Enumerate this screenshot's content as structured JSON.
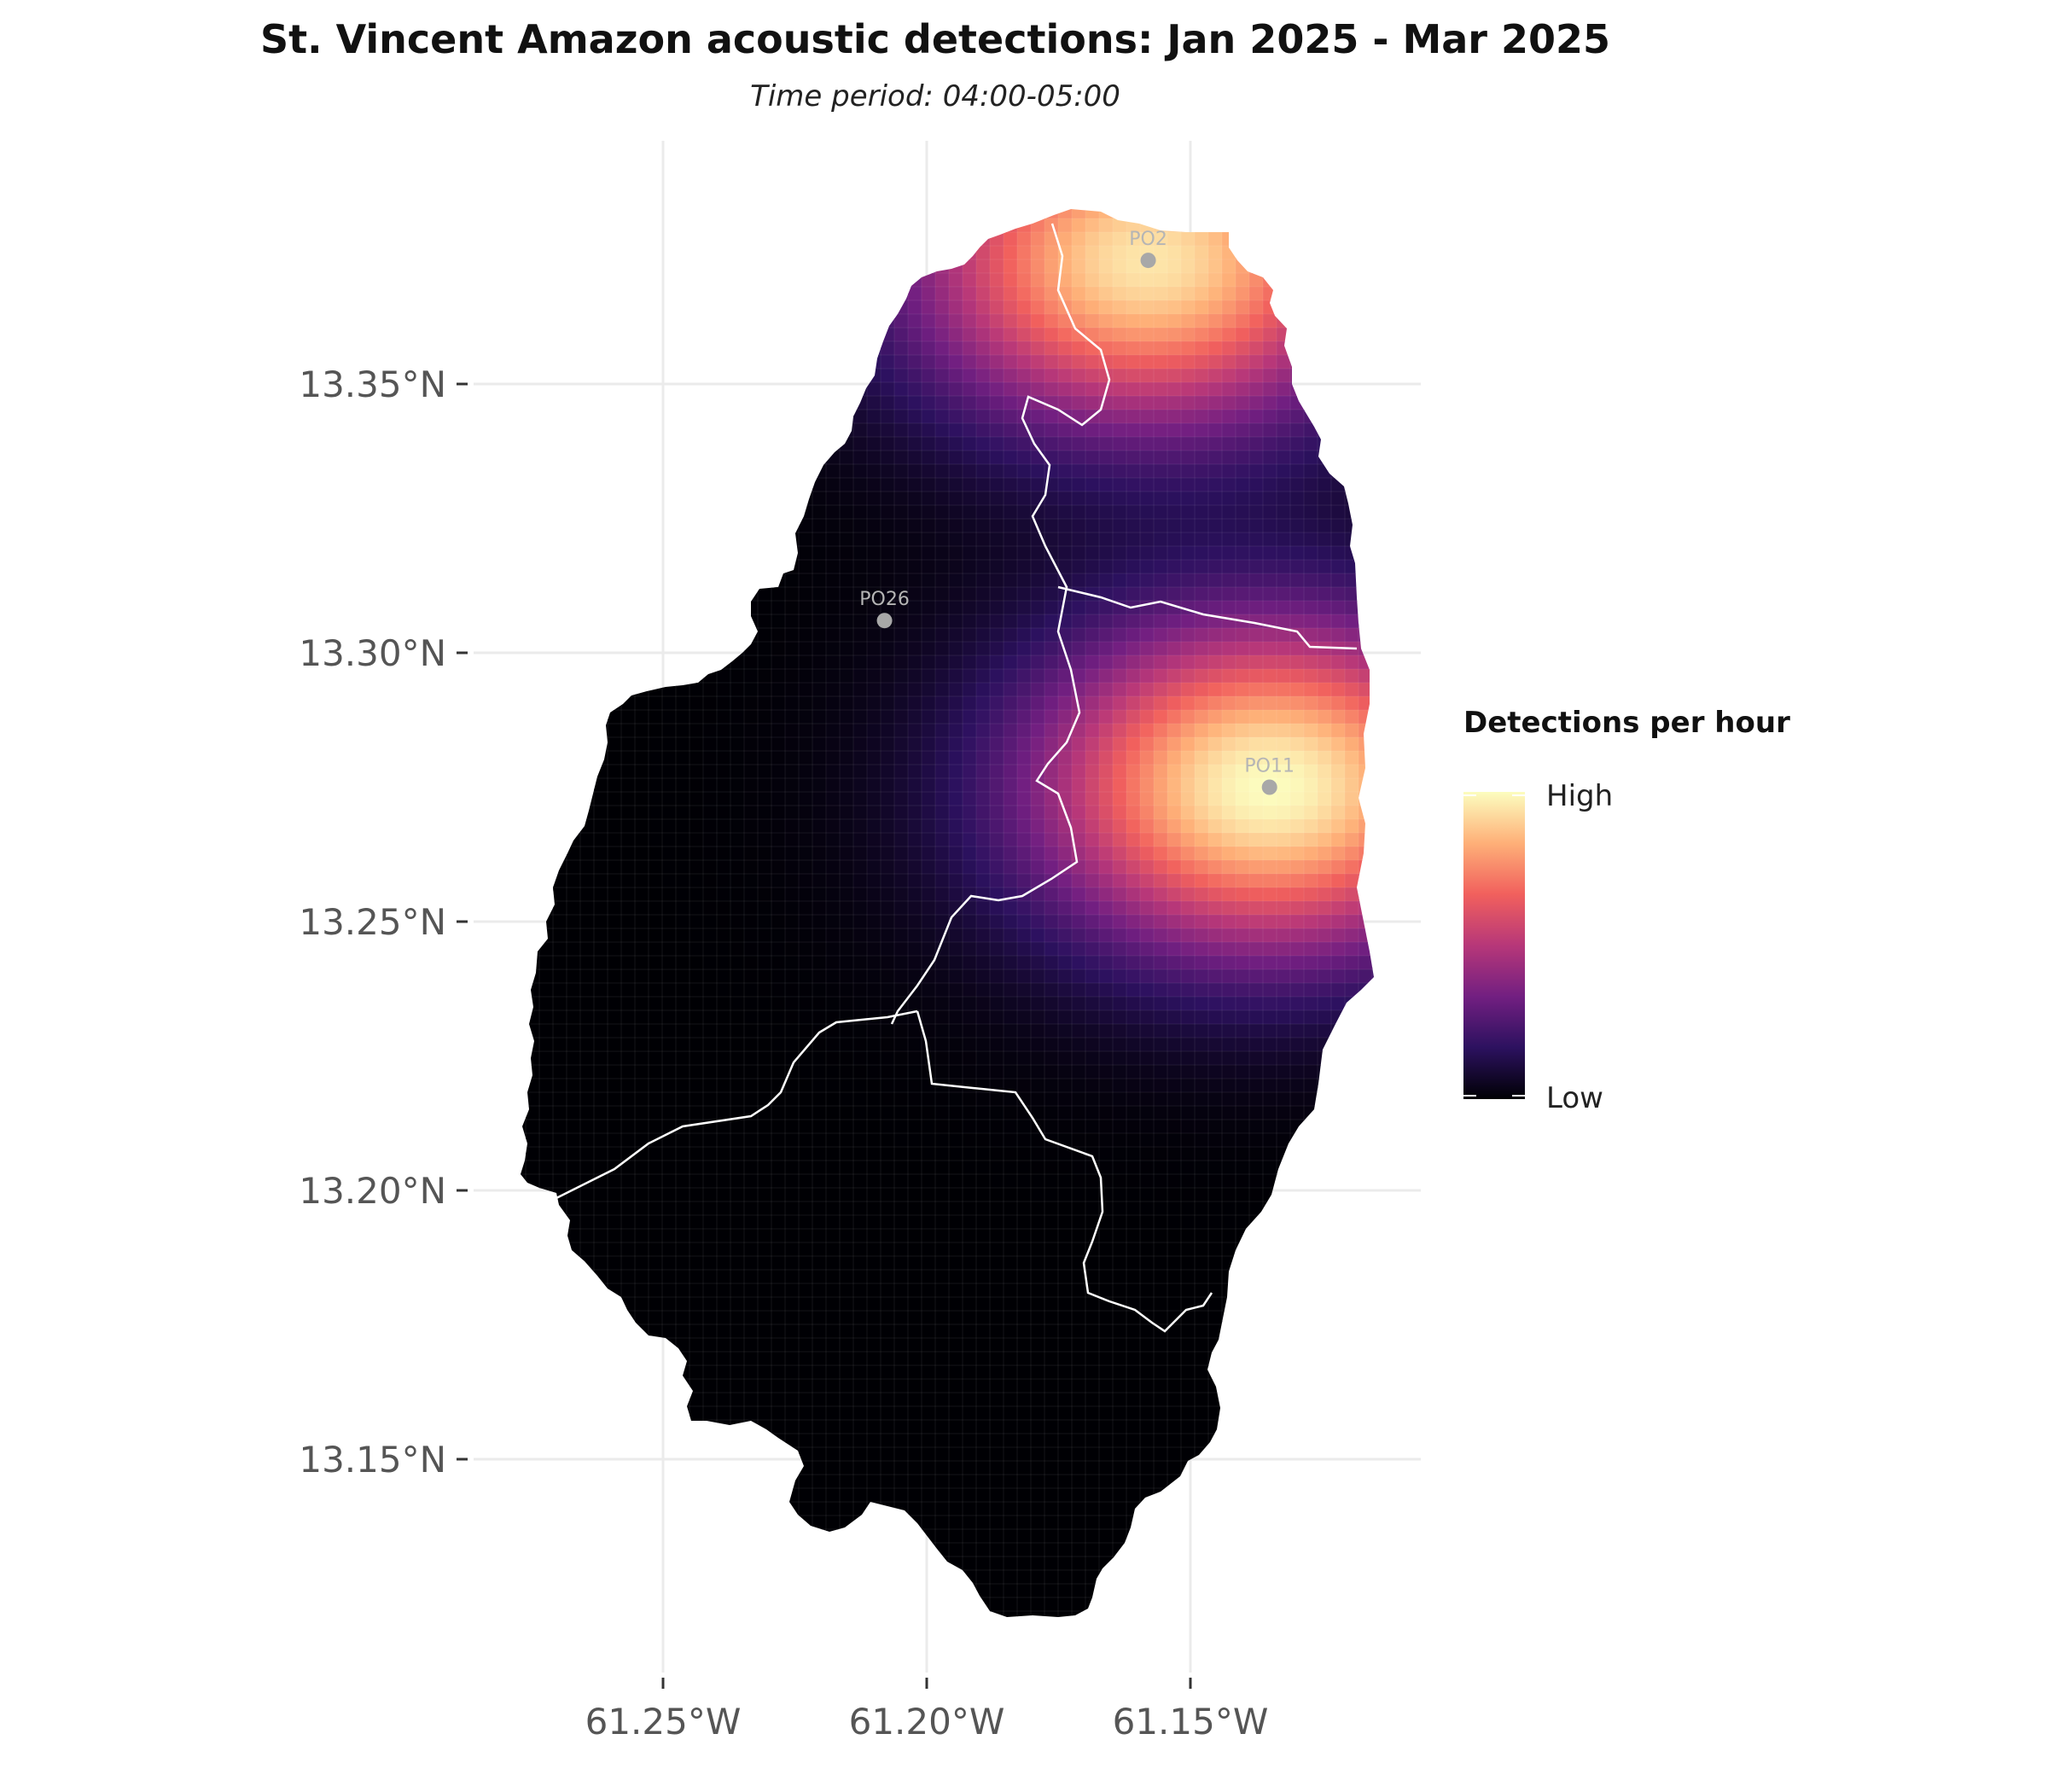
{
  "title": "St. Vincent Amazon acoustic detections: Jan 2025 - Mar 2025",
  "subtitle": "Time period: 04:00-05:00",
  "x_ticks": [
    "61.25°W",
    "61.20°W",
    "61.15°W"
  ],
  "y_ticks": [
    "13.35°N",
    "13.30°N",
    "13.25°N",
    "13.20°N",
    "13.15°N"
  ],
  "legend": {
    "title": "Detections per hour",
    "high_label": "High",
    "low_label": "Low",
    "colors": [
      "#000004",
      "#2c115f",
      "#721f81",
      "#b73779",
      "#f1605d",
      "#feb078",
      "#fcfdbf"
    ]
  },
  "chart_data": {
    "type": "heatmap",
    "xlabel": "",
    "ylabel": "",
    "x_range": [
      -61.29,
      -61.12
    ],
    "y_range": [
      13.115,
      13.4
    ],
    "x_ticks": [
      -61.25,
      -61.2,
      -61.15
    ],
    "y_ticks": [
      13.35,
      13.3,
      13.25,
      13.2,
      13.15
    ],
    "grid": true,
    "legend_position": "right",
    "colormap": "magma",
    "sites": [
      {
        "label": "PO2",
        "lon": -61.158,
        "lat": 13.373,
        "intensity": 0.95
      },
      {
        "label": "PO26",
        "lon": -61.208,
        "lat": 13.306,
        "intensity": 0.0
      },
      {
        "label": "PO11",
        "lon": -61.135,
        "lat": 13.275,
        "intensity": 1.0
      }
    ]
  }
}
